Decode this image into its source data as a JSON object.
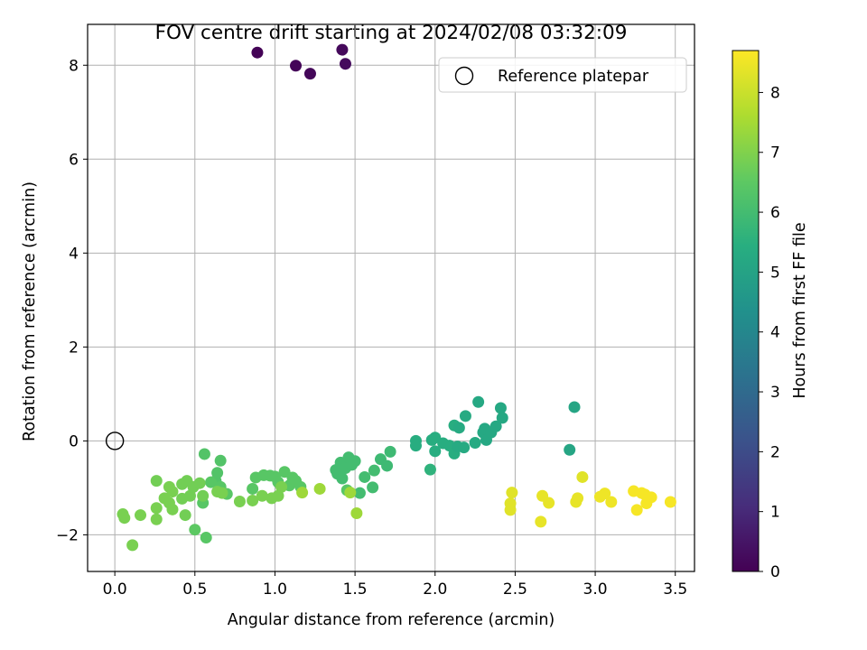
{
  "chart_data": {
    "type": "scatter",
    "title": "FOV centre drift starting at 2024/02/08 03:32:09",
    "xlabel": "Angular distance from reference (arcmin)",
    "ylabel": "Rotation from reference (arcmin)",
    "xlim": [
      -0.17,
      3.62
    ],
    "ylim": [
      -2.78,
      8.87
    ],
    "xticks": [
      0.0,
      0.5,
      1.0,
      1.5,
      2.0,
      2.5,
      3.0,
      3.5
    ],
    "xtick_labels": [
      "0.0",
      "0.5",
      "1.0",
      "1.5",
      "2.0",
      "2.5",
      "3.0",
      "3.5"
    ],
    "yticks": [
      -2,
      0,
      2,
      4,
      6,
      8
    ],
    "ytick_labels": [
      "−2",
      "0",
      "2",
      "4",
      "6",
      "8"
    ],
    "grid": true,
    "legend": {
      "position": "top-right",
      "entries": [
        "Reference platepar"
      ]
    },
    "reference_point": {
      "x": 0.0,
      "y": 0.0
    },
    "colorbar": {
      "label": "Hours from first FF file",
      "colormap": "viridis",
      "range": [
        0,
        8.7
      ],
      "ticks": [
        0,
        1,
        2,
        3,
        4,
        5,
        6,
        7,
        8
      ],
      "tick_labels": [
        "0",
        "1",
        "2",
        "3",
        "4",
        "5",
        "6",
        "7",
        "8"
      ]
    },
    "colormap_stops": [
      "#440154",
      "#472d7b",
      "#3b528b",
      "#2c728e",
      "#21918c",
      "#28ae80",
      "#5ec962",
      "#addc30",
      "#fde725"
    ],
    "points": [
      {
        "x": 0.89,
        "y": 8.27,
        "h": 0.05
      },
      {
        "x": 1.13,
        "y": 7.99,
        "h": 0.1
      },
      {
        "x": 1.22,
        "y": 7.82,
        "h": 0.15
      },
      {
        "x": 1.42,
        "y": 8.33,
        "h": 0.2
      },
      {
        "x": 1.44,
        "y": 8.03,
        "h": 0.25
      },
      {
        "x": 1.88,
        "y": 0.0,
        "h": 5.4
      },
      {
        "x": 1.88,
        "y": -0.1,
        "h": 5.4
      },
      {
        "x": 1.97,
        "y": -0.61,
        "h": 5.6
      },
      {
        "x": 1.98,
        "y": 0.02,
        "h": 5.4
      },
      {
        "x": 2.0,
        "y": 0.07,
        "h": 5.4
      },
      {
        "x": 2.0,
        "y": -0.22,
        "h": 5.4
      },
      {
        "x": 2.05,
        "y": -0.05,
        "h": 5.4
      },
      {
        "x": 2.09,
        "y": -0.1,
        "h": 5.4
      },
      {
        "x": 2.12,
        "y": 0.33,
        "h": 5.4
      },
      {
        "x": 2.12,
        "y": -0.27,
        "h": 5.4
      },
      {
        "x": 2.14,
        "y": -0.12,
        "h": 5.3
      },
      {
        "x": 2.15,
        "y": 0.28,
        "h": 5.3
      },
      {
        "x": 2.18,
        "y": -0.14,
        "h": 5.3
      },
      {
        "x": 2.19,
        "y": 0.53,
        "h": 5.3
      },
      {
        "x": 2.25,
        "y": -0.04,
        "h": 5.3
      },
      {
        "x": 2.27,
        "y": 0.83,
        "h": 5.2
      },
      {
        "x": 2.3,
        "y": 0.18,
        "h": 5.2
      },
      {
        "x": 2.31,
        "y": 0.26,
        "h": 5.2
      },
      {
        "x": 2.32,
        "y": 0.02,
        "h": 5.2
      },
      {
        "x": 2.35,
        "y": 0.18,
        "h": 5.2
      },
      {
        "x": 2.38,
        "y": 0.31,
        "h": 5.2
      },
      {
        "x": 2.41,
        "y": 0.7,
        "h": 5.2
      },
      {
        "x": 2.42,
        "y": 0.49,
        "h": 5.2
      },
      {
        "x": 2.84,
        "y": -0.19,
        "h": 5.1
      },
      {
        "x": 2.87,
        "y": 0.72,
        "h": 5.1
      },
      {
        "x": 1.38,
        "y": -0.62,
        "h": 6.0
      },
      {
        "x": 1.39,
        "y": -0.7,
        "h": 6.0
      },
      {
        "x": 1.41,
        "y": -0.46,
        "h": 6.0
      },
      {
        "x": 1.42,
        "y": -0.8,
        "h": 6.0
      },
      {
        "x": 1.44,
        "y": -0.58,
        "h": 6.0
      },
      {
        "x": 1.46,
        "y": -0.35,
        "h": 6.0
      },
      {
        "x": 1.48,
        "y": -0.51,
        "h": 6.0
      },
      {
        "x": 1.5,
        "y": -0.43,
        "h": 6.0
      },
      {
        "x": 1.53,
        "y": -1.11,
        "h": 6.0
      },
      {
        "x": 1.56,
        "y": -0.77,
        "h": 6.0
      },
      {
        "x": 1.61,
        "y": -0.99,
        "h": 6.0
      },
      {
        "x": 1.62,
        "y": -0.63,
        "h": 6.0
      },
      {
        "x": 1.66,
        "y": -0.39,
        "h": 5.9
      },
      {
        "x": 1.7,
        "y": -0.53,
        "h": 5.9
      },
      {
        "x": 1.72,
        "y": -0.23,
        "h": 5.9
      },
      {
        "x": 0.56,
        "y": -0.28,
        "h": 6.3
      },
      {
        "x": 0.57,
        "y": -2.06,
        "h": 6.4
      },
      {
        "x": 0.63,
        "y": -0.85,
        "h": 6.3
      },
      {
        "x": 0.66,
        "y": -0.42,
        "h": 6.3
      },
      {
        "x": 0.55,
        "y": -1.32,
        "h": 6.4
      },
      {
        "x": 0.6,
        "y": -0.88,
        "h": 6.4
      },
      {
        "x": 0.64,
        "y": -0.68,
        "h": 6.3
      },
      {
        "x": 0.66,
        "y": -0.98,
        "h": 6.4
      },
      {
        "x": 0.7,
        "y": -1.13,
        "h": 6.4
      },
      {
        "x": 0.86,
        "y": -1.02,
        "h": 6.4
      },
      {
        "x": 0.88,
        "y": -0.78,
        "h": 6.4
      },
      {
        "x": 0.93,
        "y": -0.73,
        "h": 6.4
      },
      {
        "x": 0.97,
        "y": -0.74,
        "h": 6.4
      },
      {
        "x": 1.0,
        "y": -0.76,
        "h": 6.4
      },
      {
        "x": 1.02,
        "y": -0.88,
        "h": 6.4
      },
      {
        "x": 1.06,
        "y": -0.66,
        "h": 6.4
      },
      {
        "x": 1.09,
        "y": -0.95,
        "h": 6.4
      },
      {
        "x": 1.11,
        "y": -0.78,
        "h": 6.4
      },
      {
        "x": 1.13,
        "y": -0.85,
        "h": 6.4
      },
      {
        "x": 1.16,
        "y": -0.98,
        "h": 6.4
      },
      {
        "x": 1.45,
        "y": -1.05,
        "h": 6.4
      },
      {
        "x": 0.5,
        "y": -1.89,
        "h": 6.5
      },
      {
        "x": 0.05,
        "y": -1.56,
        "h": 6.9
      },
      {
        "x": 0.06,
        "y": -1.64,
        "h": 6.9
      },
      {
        "x": 0.11,
        "y": -2.22,
        "h": 6.9
      },
      {
        "x": 0.16,
        "y": -1.58,
        "h": 6.9
      },
      {
        "x": 0.26,
        "y": -0.85,
        "h": 6.8
      },
      {
        "x": 0.26,
        "y": -1.43,
        "h": 6.9
      },
      {
        "x": 0.26,
        "y": -1.67,
        "h": 6.9
      },
      {
        "x": 0.31,
        "y": -1.22,
        "h": 6.9
      },
      {
        "x": 0.34,
        "y": -0.98,
        "h": 6.9
      },
      {
        "x": 0.34,
        "y": -1.32,
        "h": 6.9
      },
      {
        "x": 0.36,
        "y": -1.46,
        "h": 6.9
      },
      {
        "x": 0.36,
        "y": -1.08,
        "h": 6.9
      },
      {
        "x": 0.42,
        "y": -0.92,
        "h": 6.8
      },
      {
        "x": 0.42,
        "y": -1.23,
        "h": 6.8
      },
      {
        "x": 0.44,
        "y": -1.58,
        "h": 6.8
      },
      {
        "x": 0.45,
        "y": -0.85,
        "h": 6.8
      },
      {
        "x": 0.47,
        "y": -1.17,
        "h": 6.8
      },
      {
        "x": 0.49,
        "y": -0.98,
        "h": 6.8
      },
      {
        "x": 0.53,
        "y": -0.9,
        "h": 6.8
      },
      {
        "x": 0.55,
        "y": -1.17,
        "h": 6.8
      },
      {
        "x": 0.64,
        "y": -1.08,
        "h": 6.9
      },
      {
        "x": 0.67,
        "y": -1.11,
        "h": 6.9
      },
      {
        "x": 0.78,
        "y": -1.29,
        "h": 6.9
      },
      {
        "x": 0.86,
        "y": -1.27,
        "h": 6.9
      },
      {
        "x": 0.92,
        "y": -1.17,
        "h": 6.9
      },
      {
        "x": 0.98,
        "y": -1.22,
        "h": 6.9
      },
      {
        "x": 1.02,
        "y": -1.17,
        "h": 6.9
      },
      {
        "x": 1.04,
        "y": -0.98,
        "h": 6.9
      },
      {
        "x": 1.17,
        "y": -1.1,
        "h": 7.4
      },
      {
        "x": 1.28,
        "y": -1.02,
        "h": 7.4
      },
      {
        "x": 1.47,
        "y": -1.1,
        "h": 7.4
      },
      {
        "x": 1.51,
        "y": -1.54,
        "h": 7.4
      },
      {
        "x": 2.47,
        "y": -1.33,
        "h": 8.3
      },
      {
        "x": 2.47,
        "y": -1.47,
        "h": 8.3
      },
      {
        "x": 2.48,
        "y": -1.1,
        "h": 8.3
      },
      {
        "x": 2.66,
        "y": -1.72,
        "h": 8.4
      },
      {
        "x": 2.67,
        "y": -1.17,
        "h": 8.4
      },
      {
        "x": 2.71,
        "y": -1.32,
        "h": 8.4
      },
      {
        "x": 2.88,
        "y": -1.3,
        "h": 8.4
      },
      {
        "x": 2.89,
        "y": -1.22,
        "h": 8.4
      },
      {
        "x": 2.92,
        "y": -0.77,
        "h": 8.3
      },
      {
        "x": 3.03,
        "y": -1.19,
        "h": 8.5
      },
      {
        "x": 3.06,
        "y": -1.12,
        "h": 8.5
      },
      {
        "x": 3.1,
        "y": -1.3,
        "h": 8.5
      },
      {
        "x": 3.24,
        "y": -1.07,
        "h": 8.6
      },
      {
        "x": 3.26,
        "y": -1.47,
        "h": 8.6
      },
      {
        "x": 3.29,
        "y": -1.11,
        "h": 8.6
      },
      {
        "x": 3.31,
        "y": -1.14,
        "h": 8.6
      },
      {
        "x": 3.32,
        "y": -1.33,
        "h": 8.6
      },
      {
        "x": 3.35,
        "y": -1.2,
        "h": 8.6
      },
      {
        "x": 3.47,
        "y": -1.3,
        "h": 8.6
      }
    ]
  }
}
